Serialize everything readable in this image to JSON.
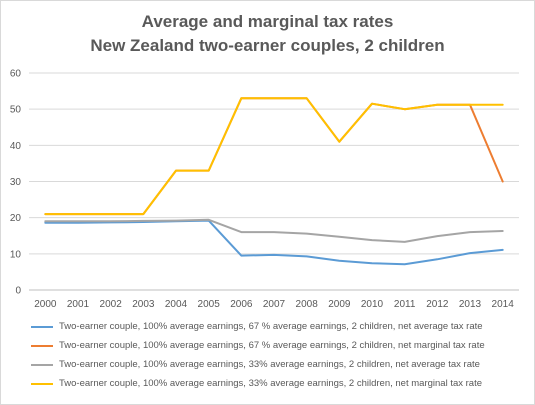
{
  "chart_data": {
    "type": "line",
    "title_line1": "Average and marginal  tax rates",
    "title_line2": "New Zealand  two-earner  couples,  2 children",
    "xlabel": "",
    "ylabel": "",
    "ylim": [
      0,
      60
    ],
    "yticks": [
      "0",
      "10",
      "20",
      "30",
      "40",
      "50",
      "60"
    ],
    "categories": [
      "2000",
      "2001",
      "2002",
      "2003",
      "2004",
      "2005",
      "2006",
      "2007",
      "2008",
      "2009",
      "2010",
      "2011",
      "2012",
      "2013",
      "2014"
    ],
    "grid": true,
    "legend_position": "bottom",
    "series": [
      {
        "name": "Two-earner couple, 100% average earnings, 67 % average earnings, 2 children, net average tax rate",
        "color": "#5b9bd5",
        "values": [
          18.6,
          18.6,
          18.7,
          18.8,
          19.0,
          19.2,
          9.5,
          9.7,
          9.3,
          8.1,
          7.4,
          7.1,
          8.5,
          10.2,
          11.1
        ]
      },
      {
        "name": "Two-earner couple, 100% average earnings, 67 % average earnings, 2 children, net marginal tax rate",
        "color": "#ed7d31",
        "values": [
          21,
          21,
          21,
          21,
          33,
          33,
          53,
          53,
          53,
          41,
          51.5,
          50,
          51.2,
          51.2,
          30
        ]
      },
      {
        "name": "Two-earner couple, 100% average earnings, 33% average earnings, 2 children, net average tax rate",
        "color": "#a5a5a5",
        "values": [
          19.0,
          19.0,
          19.0,
          19.1,
          19.2,
          19.4,
          16.0,
          16.0,
          15.6,
          14.7,
          13.8,
          13.3,
          14.9,
          16.0,
          16.3
        ]
      },
      {
        "name": "Two-earner couple, 100% average earnings, 33% average earnings, 2 children, net marginal tax rate",
        "color": "#ffc000",
        "values": [
          21,
          21,
          21,
          21,
          33,
          33,
          53,
          53,
          53,
          41,
          51.5,
          50,
          51.2,
          51.2,
          51.2
        ]
      }
    ]
  }
}
